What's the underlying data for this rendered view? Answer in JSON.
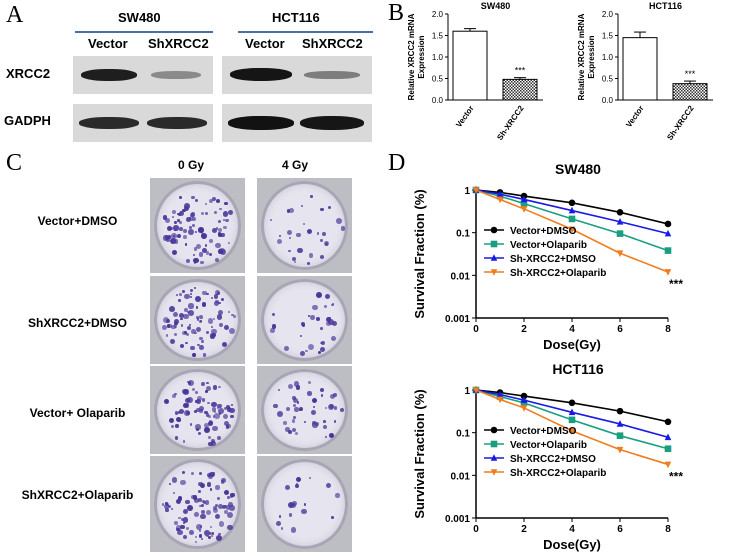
{
  "panel_a": {
    "letter": "A",
    "cell_lines": [
      "SW480",
      "HCT116"
    ],
    "lanes": [
      "Vector",
      "ShXRCC2"
    ],
    "proteins": [
      "XRCC2",
      "GADPH"
    ]
  },
  "panel_b": {
    "letter": "B",
    "ylabel": "Relative XRCC2 mRNA Expression",
    "significance": "***",
    "charts": [
      {
        "title": "SW480",
        "categories": [
          "Vector",
          "Sh-XRCC2"
        ],
        "values": [
          1.6,
          0.48
        ],
        "errors": [
          0.06,
          0.04
        ]
      },
      {
        "title": "HCT116",
        "categories": [
          "Vector",
          "Sh-XRCC2"
        ],
        "values": [
          1.45,
          0.38
        ],
        "errors": [
          0.13,
          0.06
        ]
      }
    ]
  },
  "panel_c": {
    "letter": "C",
    "columns": [
      "0 Gy",
      "4 Gy"
    ],
    "rows": [
      "Vector+DMSO",
      "ShXRCC2+DMSO",
      "Vector+ Olaparib",
      "ShXRCC2+Olaparib"
    ]
  },
  "panel_d": {
    "letter": "D"
  },
  "chart_data": [
    {
      "type": "bar",
      "title": "SW480",
      "ylabel": "Relative XRCC2 mRNA Expression",
      "categories": [
        "Vector",
        "Sh-XRCC2"
      ],
      "values": [
        1.6,
        0.48
      ],
      "ylim": [
        0,
        2.0
      ],
      "yticks": [
        "0.0",
        "0.5",
        "1.0",
        "1.5",
        "2.0"
      ],
      "annotation": "***"
    },
    {
      "type": "bar",
      "title": "HCT116",
      "ylabel": "Relative XRCC2 mRNA Expression",
      "categories": [
        "Vector",
        "Sh-XRCC2"
      ],
      "values": [
        1.45,
        0.38
      ],
      "ylim": [
        0,
        2.0
      ],
      "yticks": [
        "0.0",
        "0.5",
        "1.0",
        "1.5",
        "2.0"
      ],
      "annotation": "***"
    },
    {
      "type": "line",
      "title": "SW480",
      "xlabel": "Dose(Gy)",
      "ylabel": "Survival Fraction (%)",
      "x": [
        0,
        1,
        2,
        4,
        6,
        8
      ],
      "xlim": [
        0,
        8
      ],
      "xticks": [
        "0",
        "2",
        "4",
        "6",
        "8"
      ],
      "ylim": [
        0.001,
        1
      ],
      "yscale": "log",
      "yticks": [
        "0.001",
        "0.01",
        "0.1",
        "1"
      ],
      "legend": "lower-left",
      "annotation": "***",
      "series": [
        {
          "name": "Vector+DMSO",
          "color": "#000000",
          "marker": "circle",
          "values": [
            1,
            0.88,
            0.72,
            0.5,
            0.3,
            0.16
          ]
        },
        {
          "name": "Vector+Olaparib",
          "color": "#1a9e82",
          "marker": "square",
          "values": [
            1,
            0.72,
            0.48,
            0.21,
            0.095,
            0.038
          ]
        },
        {
          "name": "Sh-XRCC2+DMSO",
          "color": "#1a1ae6",
          "marker": "triangle-up",
          "values": [
            1,
            0.8,
            0.6,
            0.33,
            0.18,
            0.095
          ]
        },
        {
          "name": "Sh-XRCC2+Olaparib",
          "color": "#f07d1e",
          "marker": "triangle-down",
          "values": [
            1,
            0.6,
            0.36,
            0.12,
            0.033,
            0.012
          ]
        }
      ]
    },
    {
      "type": "line",
      "title": "HCT116",
      "xlabel": "Dose(Gy)",
      "ylabel": "Survival Fraction (%)",
      "x": [
        0,
        1,
        2,
        4,
        6,
        8
      ],
      "xlim": [
        0,
        8
      ],
      "xticks": [
        "0",
        "2",
        "4",
        "6",
        "8"
      ],
      "ylim": [
        0.001,
        1
      ],
      "yscale": "log",
      "yticks": [
        "0.001",
        "0.01",
        "0.1",
        "1"
      ],
      "legend": "lower-left",
      "annotation": "***",
      "series": [
        {
          "name": "Vector+DMSO",
          "color": "#000000",
          "marker": "circle",
          "values": [
            1,
            0.87,
            0.72,
            0.5,
            0.32,
            0.18
          ]
        },
        {
          "name": "Vector+Olaparib",
          "color": "#1a9e82",
          "marker": "square",
          "values": [
            1,
            0.7,
            0.5,
            0.2,
            0.085,
            0.042
          ]
        },
        {
          "name": "Sh-XRCC2+DMSO",
          "color": "#1a1ae6",
          "marker": "triangle-up",
          "values": [
            1,
            0.78,
            0.58,
            0.3,
            0.16,
            0.078
          ]
        },
        {
          "name": "Sh-XRCC2+Olaparib",
          "color": "#f07d1e",
          "marker": "triangle-down",
          "values": [
            1,
            0.6,
            0.38,
            0.11,
            0.04,
            0.018
          ]
        }
      ]
    }
  ]
}
